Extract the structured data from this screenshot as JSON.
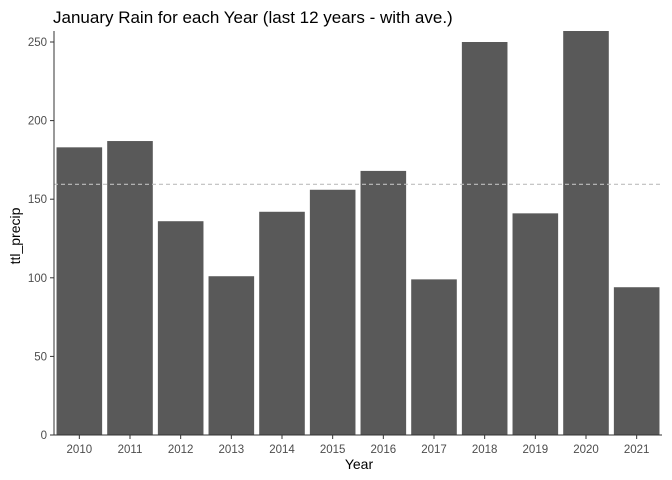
{
  "chart_data": {
    "type": "bar",
    "title": "January Rain for each Year (last 12 years - with ave.)",
    "xlabel": "Year",
    "ylabel": "ttl_precip",
    "categories": [
      "2010",
      "2011",
      "2012",
      "2013",
      "2014",
      "2015",
      "2016",
      "2017",
      "2018",
      "2019",
      "2020",
      "2021"
    ],
    "values": [
      183,
      187,
      136,
      101,
      142,
      156,
      168,
      99,
      250,
      141,
      257,
      94
    ],
    "ylim": [
      0,
      257
    ],
    "yticks": [
      0,
      50,
      100,
      150,
      200,
      250
    ],
    "average": 159.5,
    "grid": false,
    "legend": "none",
    "colors": {
      "bar": "#595959",
      "average_line": "#bebebe",
      "axis": "#333333",
      "tick_text": "#4d4d4d"
    }
  }
}
